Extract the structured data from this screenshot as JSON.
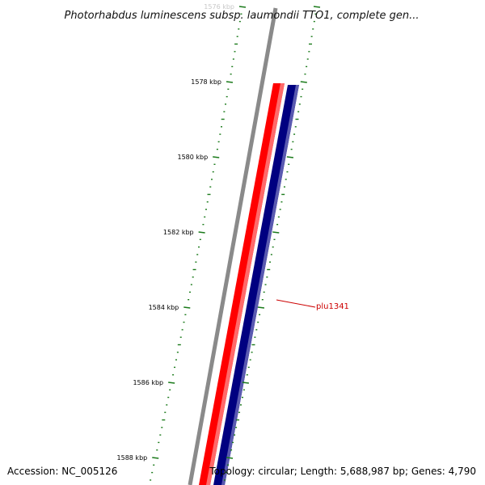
{
  "title": "Photorhabdus luminescens subsp. laumondii TTO1, complete gen...",
  "footer": {
    "accession": "Accession: NC_005126",
    "summary": "Topology: circular; Length: 5,688,987 bp; Genes: 4,790"
  },
  "scale": {
    "major_ticks": [
      {
        "kbp": 1576,
        "label": "1576 kbp"
      },
      {
        "kbp": 1578,
        "label": "1578 kbp"
      },
      {
        "kbp": 1580,
        "label": "1580 kbp"
      },
      {
        "kbp": 1582,
        "label": "1582 kbp"
      },
      {
        "kbp": 1584,
        "label": "1584 kbp"
      },
      {
        "kbp": 1586,
        "label": "1586 kbp"
      },
      {
        "kbp": 1588,
        "label": "1588 kbp"
      }
    ]
  },
  "features": {
    "gene_label": "plu1341"
  },
  "colors": {
    "backbone": "#8a8a8a",
    "forward_strand": "#ff0000",
    "reverse_strand": "#000080",
    "ticks": "#1a7a1a",
    "gene_label": "#cc0000"
  }
}
